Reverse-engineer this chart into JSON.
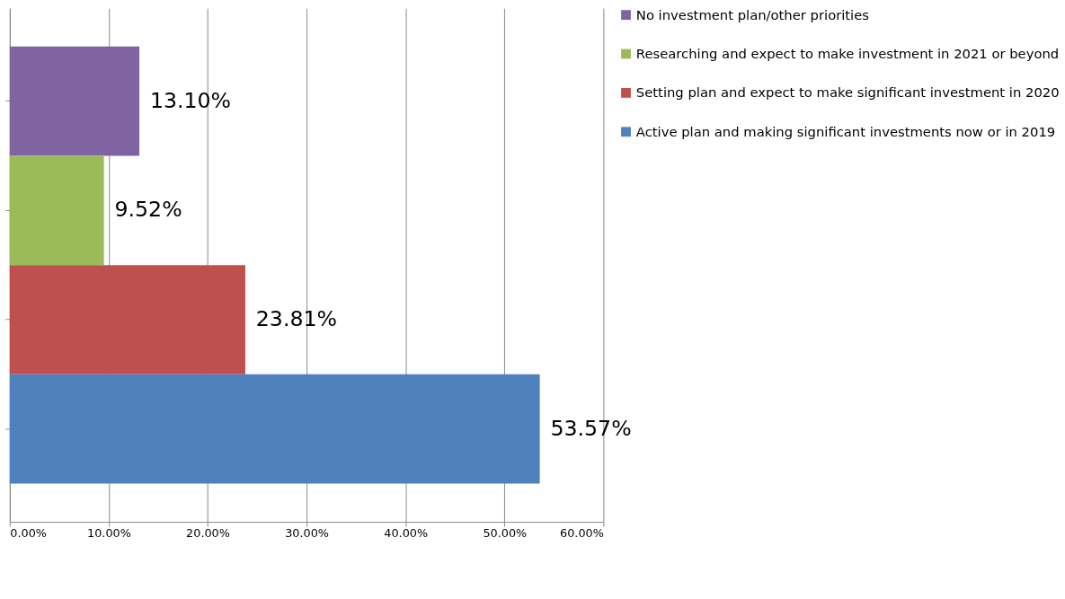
{
  "chart_data": {
    "type": "bar",
    "orientation": "horizontal",
    "categories": [
      null
    ],
    "series": [
      {
        "name": "No investment plan/other priorities",
        "color": "#8064a2",
        "values": [
          13.1
        ],
        "value_labels": [
          "13.10%"
        ]
      },
      {
        "name": "Researching and expect to make investment in 2021 or beyond",
        "color": "#9bbb59",
        "values": [
          9.52
        ],
        "value_labels": [
          "9.52%"
        ]
      },
      {
        "name": "Setting plan and expect to make significant investment in 2020",
        "color": "#c0504d",
        "values": [
          23.81
        ],
        "value_labels": [
          "23.81%"
        ]
      },
      {
        "name": "Active plan and making significant investments now or in 2019",
        "color": "#4f81bd",
        "values": [
          53.57
        ],
        "value_labels": [
          "53.57%"
        ]
      }
    ],
    "xlim": [
      0,
      60
    ],
    "xticks": [
      {
        "value": 0,
        "label": "0.00%"
      },
      {
        "value": 10,
        "label": "10.00%"
      },
      {
        "value": 20,
        "label": "20.00%"
      },
      {
        "value": 30,
        "label": "30.00%"
      },
      {
        "value": 40,
        "label": "40.00%"
      },
      {
        "value": 50,
        "label": "50.00%"
      },
      {
        "value": 60,
        "label": "60.00%"
      }
    ],
    "grid": "x",
    "legend": "right",
    "tick_labels": "x"
  }
}
